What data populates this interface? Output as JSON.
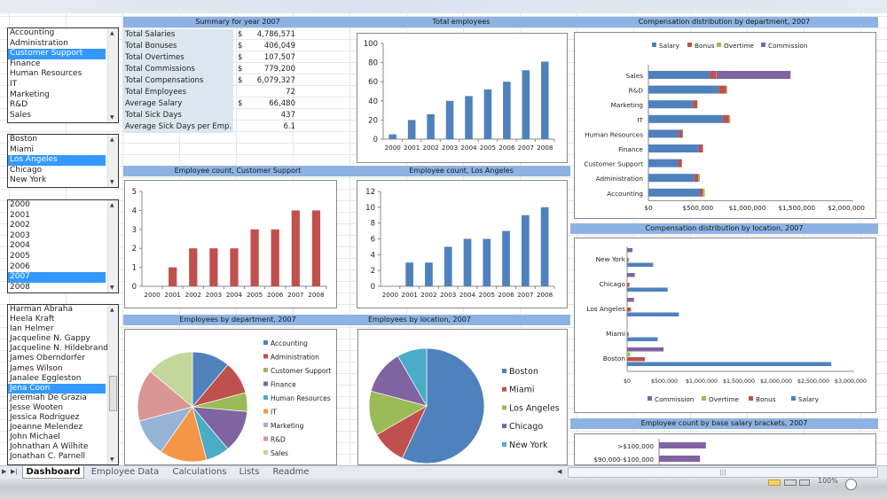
{
  "lists": {
    "departments": {
      "items": [
        "Accounting",
        "Administration",
        "Customer Support",
        "Finance",
        "Human Resources",
        "IT",
        "Marketing",
        "R&D",
        "Sales"
      ],
      "selected": "Customer Support"
    },
    "locations": {
      "items": [
        "Boston",
        "Miami",
        "Los Angeles",
        "Chicago",
        "New York"
      ],
      "selected": "Los Angeles"
    },
    "years": {
      "items": [
        "2000",
        "2001",
        "2002",
        "2003",
        "2004",
        "2005",
        "2006",
        "2007",
        "2008"
      ],
      "selected": "2007"
    },
    "employees": {
      "items": [
        "Harman Abraha",
        "Heela Kraft",
        "Ian Helmer",
        "Jacqueline N. Gappy",
        "Jacqueline N. Hildebrand",
        "James Oberndorfer",
        "James Wilson",
        "Janalee Eggleston",
        "Jena Coon",
        "Jeremiah De Grazia",
        "Jesse Wooten",
        "Jessica Rodriguez",
        "Joeanne Melendez",
        "John  Michael",
        "Johnathan A Wilhite",
        "Jonathan C. Parnell"
      ],
      "selected": "Jena Coon"
    }
  },
  "headers": {
    "summary": "Summary for year 2007",
    "total_employees": "Total employees",
    "comp_dept": "Compensation distribution by department, 2007",
    "count_dept": "Employee count, Customer Support",
    "count_loc": "Employee count, Los Angeles",
    "comp_loc": "Compensation distribution by location, 2007",
    "emp_dept": "Employees by department, 2007",
    "emp_loc": "Employees by location, 2007",
    "brackets": "Employee count by base salary brackets, 2007"
  },
  "summary": [
    {
      "label": "Total Salaries",
      "currency": "$",
      "value": "4,786,571"
    },
    {
      "label": "Total Bonuses",
      "currency": "$",
      "value": "406,049"
    },
    {
      "label": "Total Overtimes",
      "currency": "$",
      "value": "107,507"
    },
    {
      "label": "Total Commissions",
      "currency": "$",
      "value": "779,200"
    },
    {
      "label": "Total Compensations",
      "currency": "$",
      "value": "6,079,327"
    },
    {
      "label": "Total Employees",
      "currency": "",
      "value": "72"
    },
    {
      "label": "Average Salary",
      "currency": "$",
      "value": "66,480"
    },
    {
      "label": "Total Sick Days",
      "currency": "",
      "value": "437"
    },
    {
      "label": "Average Sick Days per Emp.",
      "currency": "",
      "value": "6.1"
    }
  ],
  "colors": {
    "blue": "#4f81bd",
    "red": "#c0504d",
    "green": "#9bbb59",
    "purple": "#8064a2",
    "teal": "#4bacc6",
    "orange": "#f79646",
    "lightblue": "#95b3d7",
    "pink": "#da9694",
    "lightgreen": "#c4d79b",
    "header": "#8db3e2"
  },
  "chart_data": [
    {
      "id": "total",
      "type": "bar",
      "categories": [
        "2000",
        "2001",
        "2002",
        "2003",
        "2004",
        "2005",
        "2006",
        "2007",
        "2008"
      ],
      "values": [
        5,
        20,
        26,
        40,
        45,
        52,
        60,
        72,
        81
      ],
      "ylim": [
        0,
        100
      ],
      "yticks": [
        "0",
        "20",
        "40",
        "60",
        "80",
        "100"
      ],
      "color": "#4f81bd"
    },
    {
      "id": "cs",
      "type": "bar",
      "categories": [
        "2000",
        "2001",
        "2002",
        "2003",
        "2004",
        "2005",
        "2006",
        "2007",
        "2008"
      ],
      "values": [
        0,
        1,
        2,
        2,
        2,
        3,
        3,
        4,
        4
      ],
      "ylim": [
        0,
        5
      ],
      "yticks": [
        "0",
        "1",
        "2",
        "3",
        "4",
        "5"
      ],
      "color": "#c0504d"
    },
    {
      "id": "la",
      "type": "bar",
      "categories": [
        "2000",
        "2001",
        "2002",
        "2003",
        "2004",
        "2005",
        "2006",
        "2007",
        "2008"
      ],
      "values": [
        0,
        3,
        3,
        5,
        6,
        6,
        7,
        9,
        10
      ],
      "ylim": [
        0,
        12
      ],
      "yticks": [
        "0",
        "2",
        "4",
        "6",
        "8",
        "10",
        "12"
      ],
      "color": "#4f81bd"
    },
    {
      "id": "compdept",
      "type": "bar",
      "orientation": "horizontal",
      "stacked": true,
      "categories": [
        "Sales",
        "R&D",
        "Marketing",
        "IT",
        "Human Resources",
        "Finance",
        "Customer Support",
        "Administration",
        "Accounting"
      ],
      "series": [
        {
          "name": "Salary",
          "color": "#4f81bd",
          "values": [
            620000,
            710000,
            450000,
            750000,
            310000,
            510000,
            300000,
            465000,
            520000
          ]
        },
        {
          "name": "Bonus",
          "color": "#c0504d",
          "values": [
            65000,
            75000,
            45000,
            65000,
            35000,
            40000,
            37000,
            40000,
            30000
          ]
        },
        {
          "name": "Overtime",
          "color": "#9bbb59",
          "values": [
            3000,
            12000,
            3000,
            12000,
            5000,
            5000,
            4000,
            15000,
            20000
          ]
        },
        {
          "name": "Commission",
          "color": "#8064a2",
          "values": [
            750000,
            0,
            0,
            0,
            0,
            0,
            0,
            0,
            0
          ]
        }
      ],
      "xlim": [
        0,
        2000000
      ],
      "xticks": [
        "$0",
        "$500,000",
        "$1,000,000",
        "$1,500,000",
        "$2,000,000"
      ],
      "legend": "top"
    },
    {
      "id": "comploc",
      "type": "bar",
      "orientation": "horizontal",
      "stacked": false,
      "categories": [
        "New York",
        "Chicago",
        "Los Angeles",
        "Miami",
        "Boston"
      ],
      "series": [
        {
          "name": "Commission",
          "color": "#8064a2",
          "values": [
            72000,
            103000,
            91000,
            0,
            490000
          ]
        },
        {
          "name": "Overtime",
          "color": "#9bbb59",
          "values": [
            2000,
            8000,
            8000,
            5000,
            40000
          ]
        },
        {
          "name": "Bonus",
          "color": "#c0504d",
          "values": [
            20000,
            32000,
            52000,
            20000,
            238000
          ]
        },
        {
          "name": "Salary",
          "color": "#4f81bd",
          "values": [
            350000,
            545000,
            695000,
            410000,
            2740000
          ]
        }
      ],
      "xlim": [
        0,
        3000000
      ],
      "xticks": [
        "$0",
        "$500,000",
        "$1,000,000",
        "$1,500,000",
        "$2,000,000",
        "$2,500,000",
        "$3,000,000"
      ],
      "legend": "bottom"
    },
    {
      "id": "piedept",
      "type": "pie",
      "labels": [
        "Accounting",
        "Administration",
        "Customer Support",
        "Finance",
        "Human Resources",
        "IT",
        "Marketing",
        "R&D",
        "Sales"
      ],
      "values": [
        8,
        7,
        4,
        9,
        5,
        10,
        8,
        11,
        10
      ],
      "colors": [
        "#4f81bd",
        "#c0504d",
        "#9bbb59",
        "#8064a2",
        "#4bacc6",
        "#f79646",
        "#95b3d7",
        "#da9694",
        "#c4d79b"
      ],
      "legend": "right"
    },
    {
      "id": "pieloc",
      "type": "pie",
      "labels": [
        "Boston",
        "Miami",
        "Los Angeles",
        "Chicago",
        "New York"
      ],
      "values": [
        41,
        7,
        9,
        9,
        6
      ],
      "colors": [
        "#4f81bd",
        "#c0504d",
        "#9bbb59",
        "#8064a2",
        "#4bacc6"
      ],
      "legend": "right"
    },
    {
      "id": "brackets",
      "type": "bar",
      "orientation": "horizontal",
      "categories": [
        ">$100,000",
        "$90,000-$100,000"
      ],
      "values": [
        8,
        7
      ],
      "color": "#8064a2"
    }
  ],
  "tabs": [
    "Dashboard",
    "Employee Data",
    "Calculations",
    "Lists",
    "Readme"
  ],
  "active_tab": "Dashboard",
  "status": {
    "zoom": "100%"
  }
}
